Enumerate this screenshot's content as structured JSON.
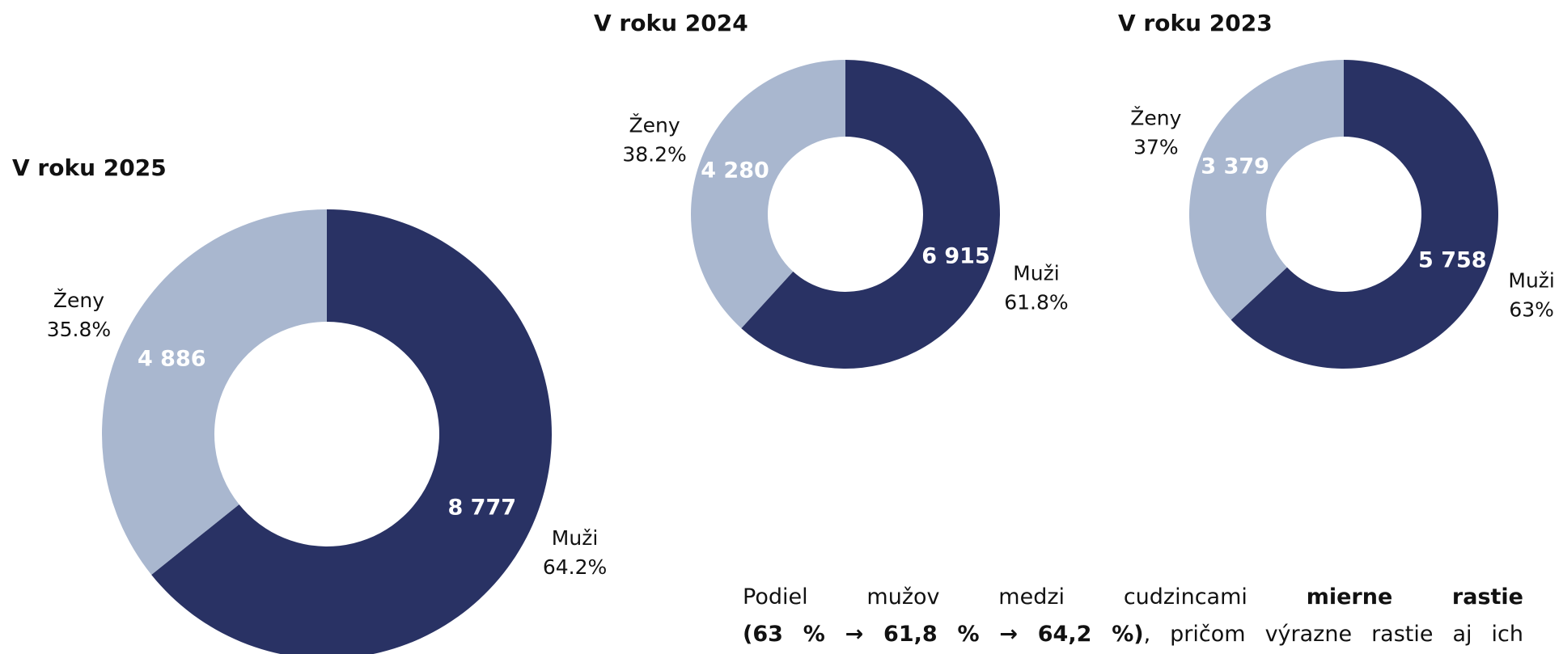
{
  "chart_data": [
    {
      "type": "donut",
      "title": "V roku 2025",
      "categories": [
        "Muži",
        "Ženy"
      ],
      "values": [
        8777,
        4886
      ],
      "value_labels": [
        "8 777",
        "4 886"
      ],
      "percent_labels": [
        "64.2%",
        "35.8%"
      ],
      "colors": [
        "#293264",
        "#a9b7cf"
      ]
    },
    {
      "type": "donut",
      "title": "V roku 2024",
      "categories": [
        "Muži",
        "Ženy"
      ],
      "values": [
        6915,
        4280
      ],
      "value_labels": [
        "6 915",
        "4 280"
      ],
      "percent_labels": [
        "61.8%",
        "38.2%"
      ],
      "colors": [
        "#293264",
        "#a9b7cf"
      ]
    },
    {
      "type": "donut",
      "title": "V roku 2023",
      "categories": [
        "Muži",
        "Ženy"
      ],
      "values": [
        5758,
        3379
      ],
      "value_labels": [
        "5 758",
        "3 379"
      ],
      "percent_labels": [
        "63%",
        "37%"
      ],
      "colors": [
        "#293264",
        "#a9b7cf"
      ]
    }
  ],
  "text": {
    "lines": [
      [
        "Podiel mužov medzi cudzincami",
        "mierne rastie"
      ],
      [
        "(63 % → 61,8 % → 64,2 %)",
        ", pričom výrazne rastie aj ich"
      ]
    ]
  }
}
